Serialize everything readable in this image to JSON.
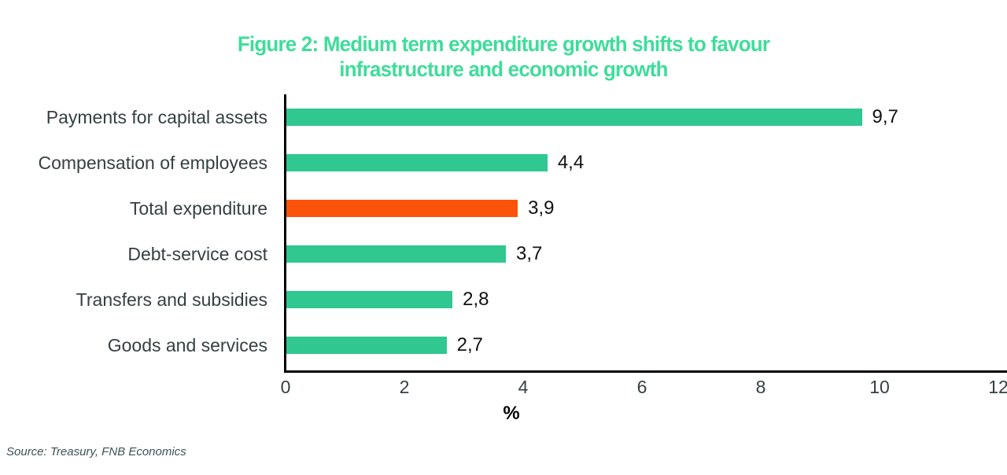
{
  "title": {
    "line1": "Figure 2: Medium term expenditure growth shifts to favour",
    "line2": "infrastructure and economic growth"
  },
  "chart_data": {
    "type": "bar",
    "orientation": "horizontal",
    "title": "Figure 2: Medium term expenditure growth shifts to favour infrastructure and economic growth",
    "categories": [
      "Payments for capital assets",
      "Compensation of employees",
      "Total expenditure",
      "Debt-service cost",
      "Transfers and subsidies",
      "Goods and services"
    ],
    "values": [
      9.7,
      4.4,
      3.9,
      3.7,
      2.8,
      2.7
    ],
    "value_labels": [
      "9,7",
      "4,4",
      "3,9",
      "3,7",
      "2,8",
      "2,7"
    ],
    "highlight_index": 2,
    "xlabel": "%",
    "ylabel": "",
    "x_ticks": [
      "0",
      "2",
      "4",
      "6",
      "8",
      "10",
      "12"
    ],
    "x_tick_values": [
      0,
      2,
      4,
      6,
      8,
      10,
      12
    ],
    "xlim": [
      0,
      12
    ],
    "grid": false,
    "legend": "none",
    "colors": {
      "bar": "#30C790",
      "highlight": "#FB530C",
      "title": "#3EDD9A",
      "axis": "#000000",
      "category_label": "#363F41",
      "value_label": "#111111"
    }
  },
  "source": "Source: Treasury, FNB Economics"
}
